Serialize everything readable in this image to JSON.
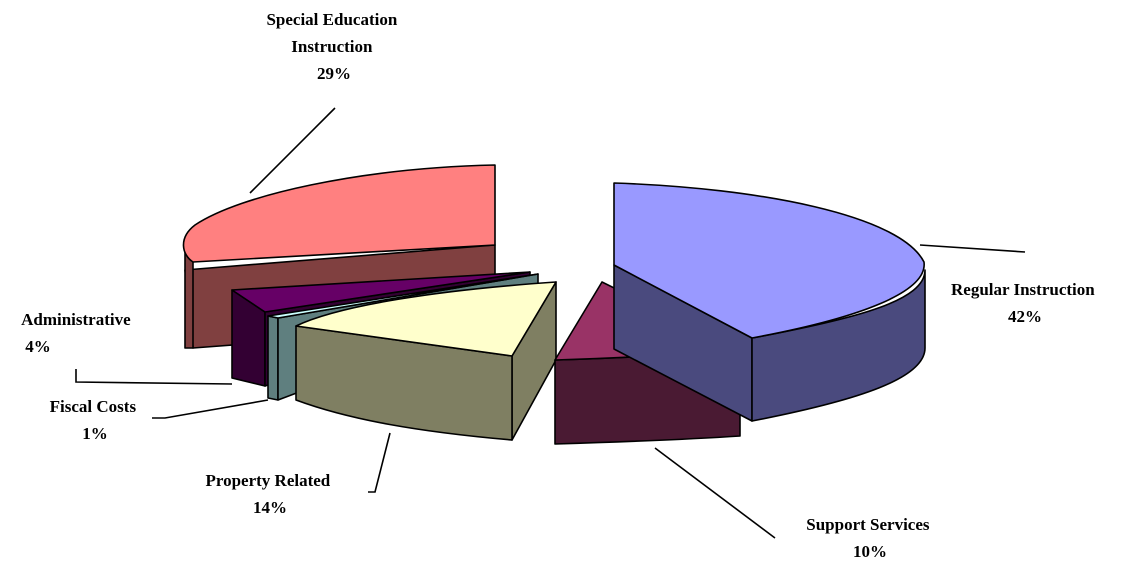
{
  "chart_data": {
    "type": "pie",
    "title": "",
    "exploded": true,
    "three_d": true,
    "slices": [
      {
        "key": "regular",
        "name_lines": [
          "Regular Instruction"
        ],
        "value": 42,
        "pct_label": "42%",
        "top_color": "#9999ff",
        "side_color": "#4a4a7e"
      },
      {
        "key": "support",
        "name_lines": [
          "Support Services"
        ],
        "value": 10,
        "pct_label": "10%",
        "top_color": "#993366",
        "side_color": "#4a1a33"
      },
      {
        "key": "property",
        "name_lines": [
          "Property Related"
        ],
        "value": 14,
        "pct_label": "14%",
        "top_color": "#ffffcc",
        "side_color": "#7f7f62"
      },
      {
        "key": "fiscal",
        "name_lines": [
          "Fiscal Costs"
        ],
        "value": 1,
        "pct_label": "1%",
        "top_color": "#ccffff",
        "side_color": "#5f7f7f"
      },
      {
        "key": "administrative",
        "name_lines": [
          "Administrative"
        ],
        "value": 4,
        "pct_label": "4%",
        "top_color": "#660066",
        "side_color": "#330033"
      },
      {
        "key": "special",
        "name_lines": [
          "Special Education",
          "Instruction"
        ],
        "value": 29,
        "pct_label": "29%",
        "top_color": "#ff8080",
        "side_color": "#804040"
      }
    ]
  }
}
